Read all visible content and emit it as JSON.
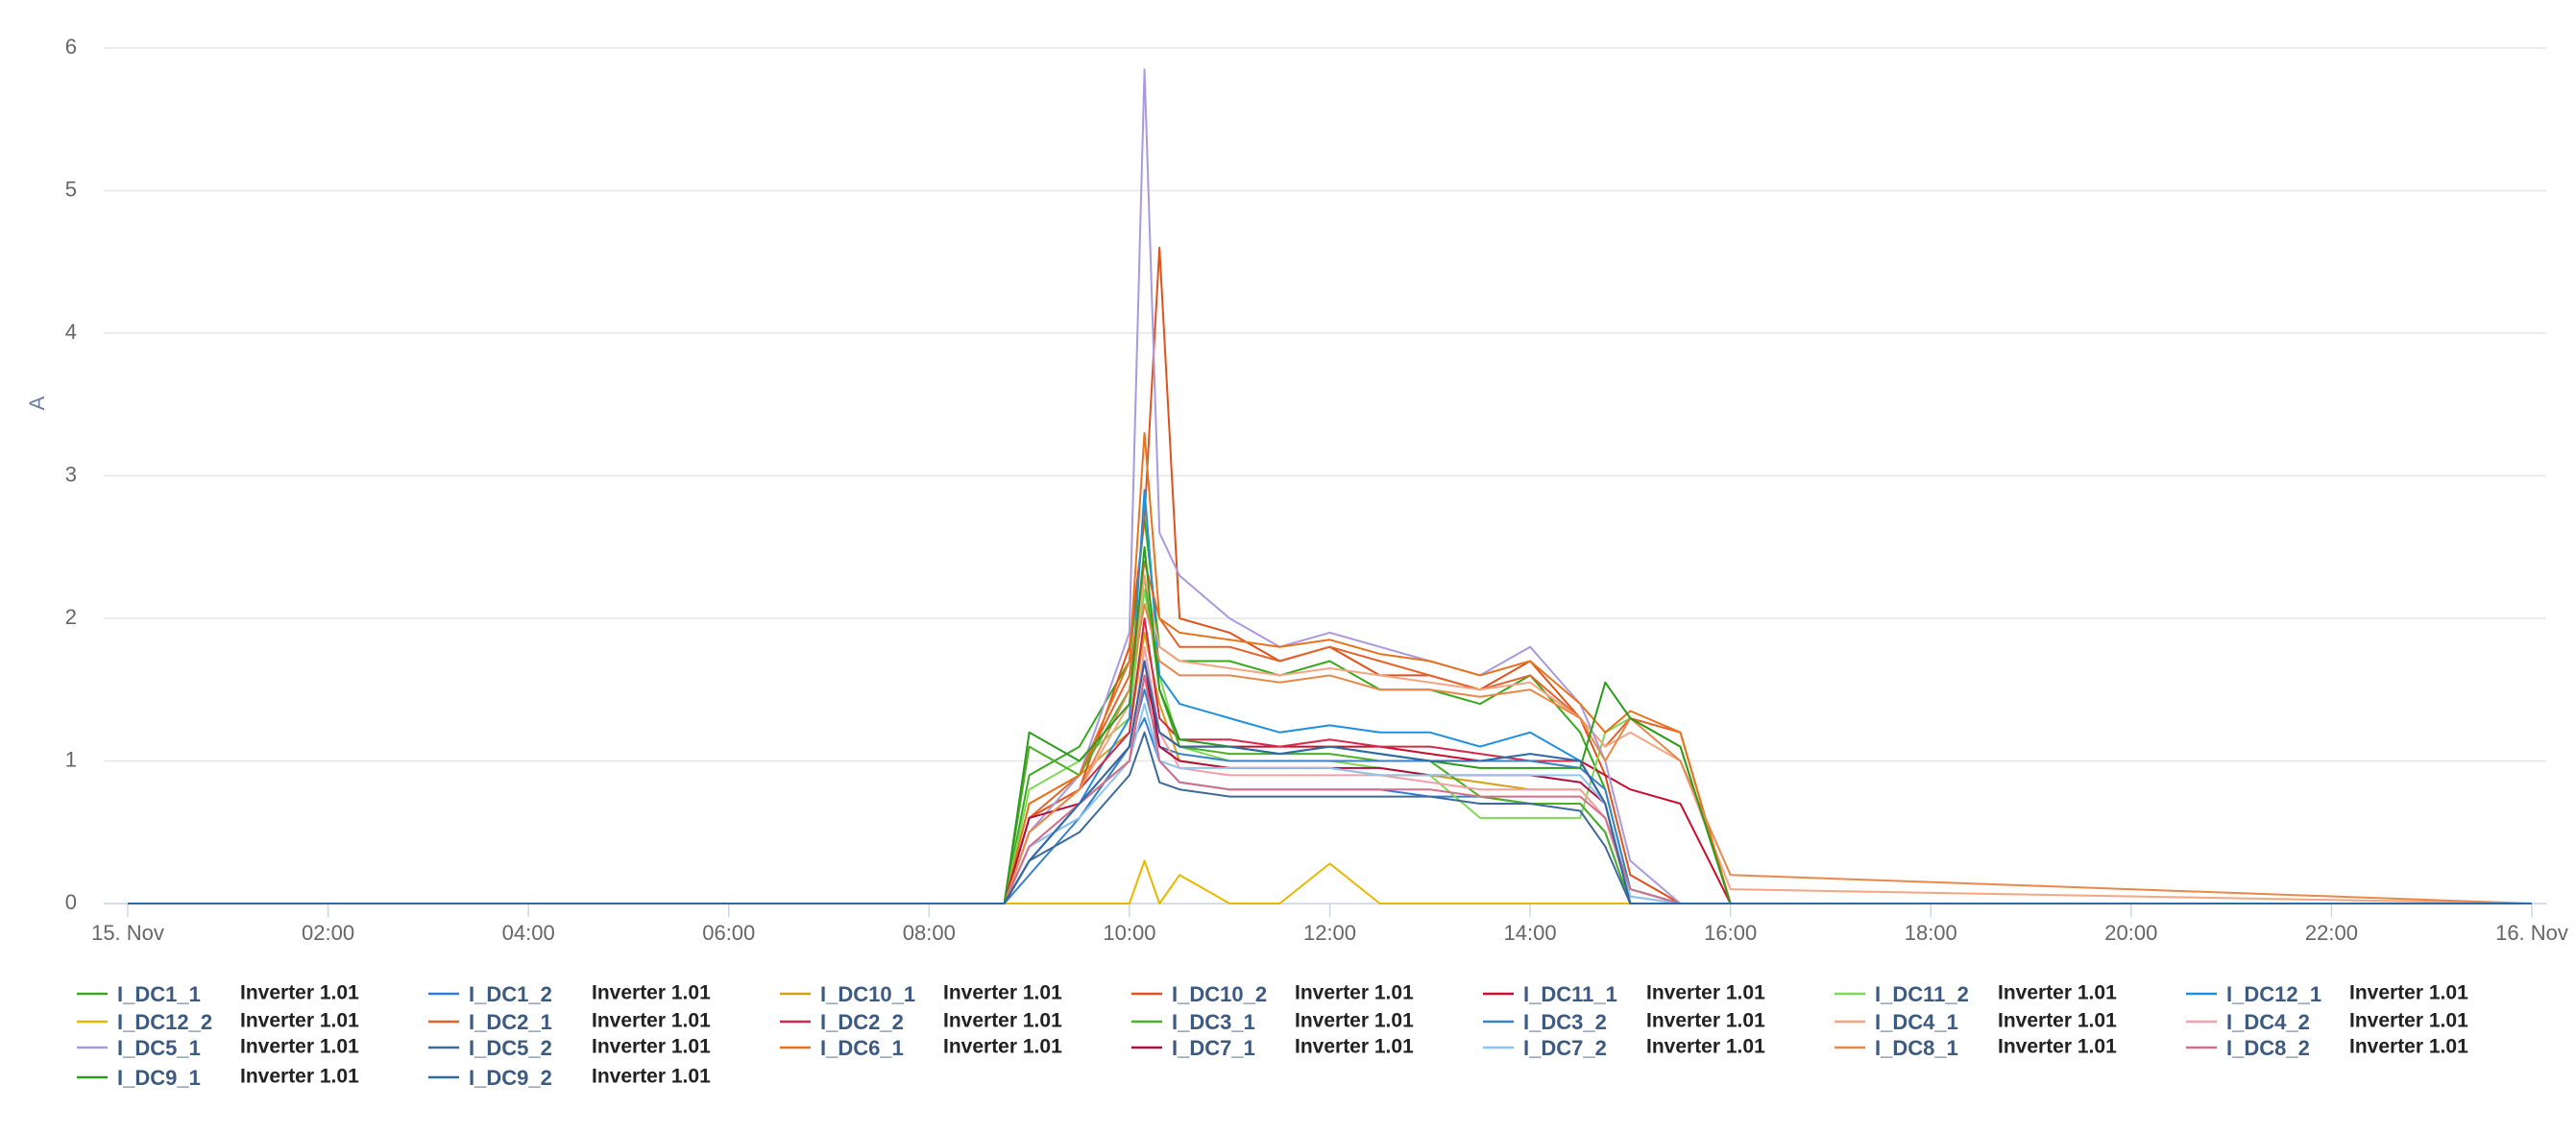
{
  "chart_data": {
    "type": "line",
    "y_label": "A",
    "x": [
      0,
      8.75,
      9,
      9.5,
      10,
      10.15,
      10.3,
      10.5,
      11,
      11.5,
      12,
      12.5,
      13,
      13.5,
      14,
      14.5,
      14.75,
      15,
      15.5,
      16,
      24
    ],
    "xlim": [
      0,
      24
    ],
    "xticks": [
      {
        "value": 0,
        "label": "15. Nov"
      },
      {
        "value": 2,
        "label": "02:00"
      },
      {
        "value": 4,
        "label": "04:00"
      },
      {
        "value": 6,
        "label": "06:00"
      },
      {
        "value": 8,
        "label": "08:00"
      },
      {
        "value": 10,
        "label": "10:00"
      },
      {
        "value": 12,
        "label": "12:00"
      },
      {
        "value": 14,
        "label": "14:00"
      },
      {
        "value": 16,
        "label": "16:00"
      },
      {
        "value": 18,
        "label": "18:00"
      },
      {
        "value": 20,
        "label": "20:00"
      },
      {
        "value": 22,
        "label": "22:00"
      },
      {
        "value": 24,
        "label": "16. Nov"
      }
    ],
    "ylim": [
      0,
      6
    ],
    "yticks": [
      0,
      1,
      2,
      3,
      4,
      5,
      6
    ],
    "grid": true,
    "series": [
      {
        "name": "I_DC1_1",
        "device": "Inverter 1.01",
        "color": "#3aa81e",
        "values": [
          0,
          0,
          0.9,
          1.1,
          1.7,
          2.7,
          1.8,
          1.7,
          1.7,
          1.6,
          1.7,
          1.5,
          1.5,
          1.4,
          1.6,
          1.2,
          0.8,
          0.1,
          0,
          0,
          0
        ]
      },
      {
        "name": "I_DC1_2",
        "device": "Inverter 1.01",
        "color": "#2f7ed8",
        "values": [
          0,
          0,
          0.4,
          0.6,
          1.1,
          1.3,
          1.0,
          0.85,
          0.8,
          0.8,
          0.8,
          0.8,
          0.75,
          0.75,
          0.7,
          0.7,
          0.5,
          0,
          0,
          0,
          0
        ]
      },
      {
        "name": "I_DC10_1",
        "device": "Inverter 1.01",
        "color": "#d4a017",
        "values": [
          0,
          0,
          0.7,
          0.9,
          1.2,
          1.9,
          1.4,
          1.0,
          0.95,
          0.95,
          0.95,
          0.9,
          0.9,
          0.85,
          0.8,
          0.8,
          0.6,
          0.05,
          0,
          0,
          0
        ]
      },
      {
        "name": "I_DC10_2",
        "device": "Inverter 1.01",
        "color": "#e0521b",
        "values": [
          0,
          0,
          0.6,
          0.8,
          1.8,
          2.7,
          4.6,
          2.0,
          1.9,
          1.7,
          1.8,
          1.6,
          1.6,
          1.5,
          1.7,
          1.3,
          0.9,
          0.2,
          0,
          0,
          0
        ]
      },
      {
        "name": "I_DC11_1",
        "device": "Inverter 1.01",
        "color": "#c8102e",
        "values": [
          0,
          0,
          0.3,
          0.7,
          1.0,
          1.6,
          1.2,
          1.1,
          1.1,
          1.1,
          1.1,
          1.1,
          1.05,
          1.0,
          1.0,
          1.0,
          0.9,
          0.8,
          0.7,
          0,
          0
        ]
      },
      {
        "name": "I_DC11_2",
        "device": "Inverter 1.01",
        "color": "#7ed957",
        "values": [
          0,
          0,
          0.8,
          1.0,
          1.3,
          2.2,
          1.6,
          1.1,
          1.0,
          1.0,
          1.0,
          0.95,
          0.9,
          0.6,
          0.6,
          0.6,
          1.2,
          1.3,
          1.1,
          0,
          0
        ]
      },
      {
        "name": "I_DC12_1",
        "device": "Inverter 1.01",
        "color": "#1f8fe0",
        "values": [
          0,
          0,
          0.3,
          0.7,
          1.3,
          2.9,
          1.6,
          1.4,
          1.3,
          1.2,
          1.25,
          1.2,
          1.2,
          1.1,
          1.2,
          1.0,
          0.7,
          0,
          0,
          0,
          0
        ]
      },
      {
        "name": "I_DC12_2",
        "device": "Inverter 1.01",
        "color": "#e6b800",
        "values": [
          0,
          0,
          0,
          0,
          0,
          0.3,
          0,
          0.2,
          0,
          0,
          0.28,
          0,
          0,
          0,
          0,
          0,
          0,
          0,
          0,
          0,
          0
        ]
      },
      {
        "name": "I_DC2_1",
        "device": "Inverter 1.01",
        "color": "#e5632b",
        "values": [
          0,
          0,
          0.6,
          0.9,
          1.6,
          2.4,
          2.0,
          1.8,
          1.8,
          1.7,
          1.8,
          1.7,
          1.6,
          1.5,
          1.6,
          1.3,
          1.1,
          1.3,
          1.2,
          0,
          0
        ]
      },
      {
        "name": "I_DC2_2",
        "device": "Inverter 1.01",
        "color": "#d42a4a",
        "values": [
          0,
          0,
          0.5,
          0.8,
          1.2,
          2.0,
          1.3,
          1.15,
          1.15,
          1.1,
          1.15,
          1.1,
          1.1,
          1.05,
          1.0,
          1.0,
          0.7,
          0,
          0,
          0,
          0
        ]
      },
      {
        "name": "I_DC3_1",
        "device": "Inverter 1.01",
        "color": "#4caf28",
        "values": [
          0,
          0,
          1.1,
          0.9,
          1.5,
          2.3,
          1.5,
          1.1,
          1.05,
          1.05,
          1.05,
          1.0,
          1.0,
          0.75,
          0.7,
          0.7,
          0.5,
          0,
          0,
          0,
          0
        ]
      },
      {
        "name": "I_DC3_2",
        "device": "Inverter 1.01",
        "color": "#3b82c4",
        "values": [
          0,
          0,
          0.2,
          0.6,
          1.1,
          1.5,
          1.1,
          1.05,
          1.0,
          1.0,
          1.0,
          1.0,
          1.0,
          1.0,
          1.0,
          0.95,
          0.8,
          0.1,
          0,
          0,
          0
        ]
      },
      {
        "name": "I_DC4_1",
        "device": "Inverter 1.01",
        "color": "#f4a582",
        "values": [
          0,
          0,
          0.5,
          0.8,
          1.4,
          2.3,
          1.8,
          1.7,
          1.65,
          1.6,
          1.65,
          1.6,
          1.55,
          1.5,
          1.55,
          1.3,
          1.1,
          1.2,
          1.0,
          0.1,
          0
        ]
      },
      {
        "name": "I_DC4_2",
        "device": "Inverter 1.01",
        "color": "#f2a0a8",
        "values": [
          0,
          0,
          0.4,
          0.7,
          1.0,
          1.8,
          1.2,
          0.95,
          0.9,
          0.9,
          0.9,
          0.9,
          0.85,
          0.8,
          0.8,
          0.8,
          0.6,
          0.05,
          0,
          0,
          0
        ]
      },
      {
        "name": "I_DC5_1",
        "device": "Inverter 1.01",
        "color": "#a99ae0",
        "values": [
          0,
          0,
          0.5,
          0.9,
          1.9,
          5.85,
          2.6,
          2.3,
          2.0,
          1.8,
          1.9,
          1.8,
          1.7,
          1.6,
          1.8,
          1.4,
          1.0,
          0.3,
          0,
          0,
          0
        ]
      },
      {
        "name": "I_DC5_2",
        "device": "Inverter 1.01",
        "color": "#3d6a99",
        "values": [
          0,
          0,
          0.3,
          0.5,
          0.9,
          1.2,
          0.85,
          0.8,
          0.75,
          0.75,
          0.75,
          0.75,
          0.75,
          0.7,
          0.7,
          0.65,
          0.4,
          0,
          0,
          0,
          0
        ]
      },
      {
        "name": "I_DC6_1",
        "device": "Inverter 1.01",
        "color": "#e8731e",
        "values": [
          0,
          0,
          0.7,
          0.9,
          1.7,
          3.3,
          2.0,
          1.9,
          1.85,
          1.8,
          1.85,
          1.75,
          1.7,
          1.6,
          1.7,
          1.4,
          1.2,
          1.35,
          1.2,
          0,
          0
        ]
      },
      {
        "name": "I_DC7_1",
        "device": "Inverter 1.01",
        "color": "#b01040",
        "values": [
          0,
          0,
          0.6,
          0.7,
          1.1,
          1.7,
          1.1,
          1.0,
          0.95,
          0.95,
          0.95,
          0.95,
          0.9,
          0.9,
          0.9,
          0.85,
          0.7,
          0,
          0,
          0,
          0
        ]
      },
      {
        "name": "I_DC7_2",
        "device": "Inverter 1.01",
        "color": "#8ec5f0",
        "values": [
          0,
          0,
          0.4,
          0.6,
          1.0,
          1.4,
          1.0,
          0.95,
          0.95,
          0.95,
          0.95,
          0.9,
          0.9,
          0.9,
          0.9,
          0.9,
          0.7,
          0.05,
          0,
          0,
          0
        ]
      },
      {
        "name": "I_DC8_1",
        "device": "Inverter 1.01",
        "color": "#e6894a",
        "values": [
          0,
          0,
          0.5,
          0.8,
          1.5,
          2.1,
          1.7,
          1.6,
          1.6,
          1.55,
          1.6,
          1.5,
          1.5,
          1.45,
          1.5,
          1.3,
          1.0,
          1.3,
          1.0,
          0.2,
          0
        ]
      },
      {
        "name": "I_DC8_2",
        "device": "Inverter 1.01",
        "color": "#d0708a",
        "values": [
          0,
          0,
          0.4,
          0.7,
          1.0,
          1.6,
          1.0,
          0.85,
          0.8,
          0.8,
          0.8,
          0.8,
          0.8,
          0.75,
          0.75,
          0.75,
          0.6,
          0.1,
          0,
          0,
          0
        ]
      },
      {
        "name": "I_DC9_1",
        "device": "Inverter 1.01",
        "color": "#2e9a1e",
        "values": [
          0,
          0,
          1.2,
          1.0,
          1.4,
          2.5,
          1.5,
          1.15,
          1.1,
          1.05,
          1.1,
          1.05,
          1.0,
          0.95,
          0.95,
          0.95,
          1.55,
          1.3,
          1.1,
          0,
          0
        ]
      },
      {
        "name": "I_DC9_2",
        "device": "Inverter 1.01",
        "color": "#2d6aa8",
        "values": [
          0,
          0,
          0.3,
          0.7,
          1.1,
          1.7,
          1.2,
          1.1,
          1.1,
          1.05,
          1.1,
          1.05,
          1.0,
          1.0,
          1.05,
          1.0,
          0.7,
          0,
          0,
          0,
          0
        ]
      }
    ]
  }
}
